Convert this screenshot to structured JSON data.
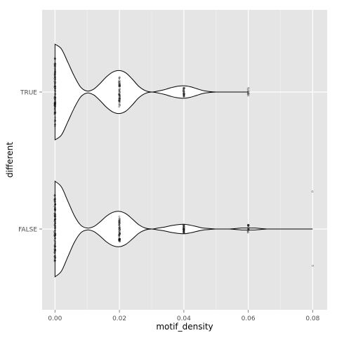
{
  "chart_data": {
    "type": "violin",
    "orientation": "horizontal",
    "xlabel": "motif_density",
    "ylabel": "different",
    "xlim": [
      -0.004,
      0.0845
    ],
    "x_ticks": [
      0.0,
      0.02,
      0.04,
      0.06,
      0.08
    ],
    "x_tick_labels": [
      "0.00",
      "0.02",
      "0.04",
      "0.06",
      "0.08"
    ],
    "categories": [
      "TRUE",
      "FALSE"
    ],
    "grid": true,
    "legend": "none",
    "background": "#e5e5e5",
    "grid_color": "#ffffff",
    "violin_fill": "#ffffff",
    "violin_stroke": "#000000",
    "point_color": "#000000",
    "series": [
      {
        "category": "TRUE",
        "density_x": [
          0.0,
          0.002,
          0.004,
          0.006,
          0.008,
          0.01,
          0.012,
          0.014,
          0.016,
          0.018,
          0.02,
          0.022,
          0.024,
          0.026,
          0.028,
          0.03,
          0.032,
          0.034,
          0.036,
          0.038,
          0.04,
          0.042,
          0.044,
          0.046,
          0.048,
          0.05,
          0.052,
          0.054,
          0.056,
          0.058,
          0.06
        ],
        "density_halfwidth": [
          1.0,
          0.9,
          0.62,
          0.33,
          0.1,
          0.02,
          0.06,
          0.18,
          0.32,
          0.42,
          0.45,
          0.4,
          0.27,
          0.12,
          0.03,
          0.0,
          0.02,
          0.05,
          0.09,
          0.12,
          0.13,
          0.11,
          0.07,
          0.03,
          0.01,
          0.0,
          0.0,
          0.0,
          0.0,
          0.0,
          0.0
        ],
        "points": [
          {
            "x": 0.0,
            "n": 90
          },
          {
            "x": 0.02,
            "n": 55
          },
          {
            "x": 0.04,
            "n": 26
          },
          {
            "x": 0.06,
            "n": 9
          }
        ]
      },
      {
        "category": "FALSE",
        "density_x": [
          0.0,
          0.002,
          0.004,
          0.006,
          0.008,
          0.01,
          0.012,
          0.014,
          0.016,
          0.018,
          0.02,
          0.022,
          0.024,
          0.026,
          0.028,
          0.03,
          0.032,
          0.034,
          0.036,
          0.038,
          0.04,
          0.042,
          0.044,
          0.046,
          0.048,
          0.05,
          0.052,
          0.054,
          0.056,
          0.058,
          0.06,
          0.062,
          0.064,
          0.066,
          0.068,
          0.07,
          0.072,
          0.074,
          0.076,
          0.078,
          0.08
        ],
        "density_halfwidth": [
          1.0,
          0.88,
          0.58,
          0.28,
          0.08,
          0.02,
          0.05,
          0.15,
          0.27,
          0.35,
          0.37,
          0.32,
          0.21,
          0.09,
          0.02,
          0.0,
          0.02,
          0.04,
          0.07,
          0.09,
          0.1,
          0.08,
          0.05,
          0.02,
          0.01,
          0.0,
          0.0,
          0.0,
          0.01,
          0.02,
          0.02,
          0.02,
          0.01,
          0.0,
          0.0,
          0.0,
          0.0,
          0.0,
          0.0,
          0.0,
          0.0
        ],
        "points": [
          {
            "x": 0.0,
            "n": 95
          },
          {
            "x": 0.02,
            "n": 60
          },
          {
            "x": 0.04,
            "n": 30
          },
          {
            "x": 0.06,
            "n": 18
          },
          {
            "x": 0.08,
            "n": 2
          }
        ]
      }
    ]
  }
}
